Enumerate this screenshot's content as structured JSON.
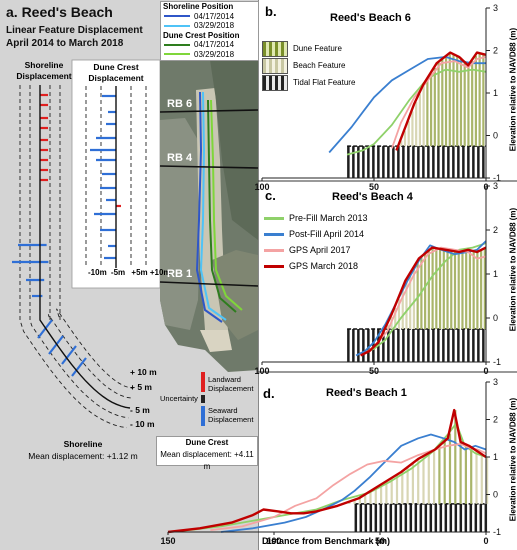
{
  "panel_a": {
    "label": "a. Reed's Beach",
    "subtitle_line1": "Linear Feature Displacement",
    "subtitle_line2": "April 2014 to March 2018",
    "shoreline_header_1": "Shoreline",
    "shoreline_header_2": "Displacement",
    "dune_header_1": "Dune Crest",
    "dune_header_2": "Displacement",
    "inset_axis": [
      "-10m",
      "-5m",
      "+5m",
      "+10m"
    ],
    "scale_labels": [
      "+ 10 m",
      "+ 5 m",
      "- 5 m",
      "- 10 m"
    ],
    "legend_landward": "Landward Displacement",
    "legend_uncertainty": "Uncertainty",
    "legend_seaward": "Seaward Displacement",
    "shoreline_footer_title": "Shoreline",
    "shoreline_footer_value": "Mean displacement: +1.12 m",
    "dune_footer_title": "Dune Crest",
    "dune_footer_value": "Mean displacement: +4.11 m",
    "map_legend": {
      "shoreline_title": "Shoreline Position",
      "shoreline_items": [
        {
          "label": "04/17/2014",
          "color": "#2f56c8"
        },
        {
          "label": "03/29/2018",
          "color": "#4fc3f7"
        }
      ],
      "dune_title": "Dune Crest Position",
      "dune_items": [
        {
          "label": "04/17/2014",
          "color": "#2e7d1e"
        },
        {
          "label": "03/29/2018",
          "color": "#7fd63a"
        }
      ]
    },
    "transects": [
      "RB 6",
      "RB 4",
      "RB 1"
    ],
    "colors": {
      "landward": "#e02020",
      "seaward": "#2f6fd6",
      "uncertainty": "#222222"
    }
  },
  "panel_b": {
    "label": "b.",
    "title": "Reed's Beach 6",
    "legend": [
      "Dune Feature",
      "Beach Feature",
      "Tidal Flat Feature"
    ]
  },
  "panel_c": {
    "label": "c.",
    "title": "Reed's Beach 4",
    "legend": [
      {
        "label": "Pre-Fill March 2013",
        "color": "#8fd16a"
      },
      {
        "label": "Post-Fill April 2014",
        "color": "#3a7fd0"
      },
      {
        "label": "GPS April 2017",
        "color": "#f4a3a3"
      },
      {
        "label": "GPS March 2018",
        "color": "#c00000"
      }
    ]
  },
  "panel_d": {
    "label": "d.",
    "title": "Reed's Beach 1",
    "xlabel": "Distance from Benchmark (m)"
  },
  "ylabel": "Elevation relative to NAVD88 (m)",
  "chart_data": [
    {
      "type": "line",
      "title": "Reed's Beach 6",
      "xlim": [
        100,
        0
      ],
      "ylim": [
        -1,
        3
      ],
      "x_ticks": [
        "100",
        "50",
        "0"
      ],
      "y_ticks": [
        "3",
        "2",
        "1",
        "0",
        "-1"
      ],
      "series": [
        {
          "name": "Pre-Fill March 2013",
          "x": [
            62,
            55,
            50,
            42,
            34,
            26,
            18,
            12,
            6,
            0
          ],
          "y": [
            -0.45,
            -0.35,
            -0.2,
            0.25,
            0.85,
            1.35,
            1.55,
            1.5,
            1.55,
            1.5
          ]
        },
        {
          "name": "Post-Fill April 2014",
          "x": [
            70,
            60,
            55,
            50,
            42,
            34,
            26,
            18,
            12,
            6,
            0
          ],
          "y": [
            -0.4,
            0.2,
            0.55,
            0.9,
            1.3,
            1.55,
            1.8,
            1.85,
            1.75,
            1.7,
            1.7
          ]
        },
        {
          "name": "GPS April 2017",
          "x": [
            42,
            38,
            32,
            26,
            20,
            14,
            8,
            4,
            0
          ],
          "y": [
            -0.3,
            0.3,
            0.9,
            1.3,
            1.7,
            1.75,
            1.6,
            1.8,
            1.85
          ]
        },
        {
          "name": "GPS March 2018",
          "x": [
            40,
            36,
            32,
            28,
            22,
            16,
            12,
            8,
            4,
            0
          ],
          "y": [
            -0.35,
            0.2,
            0.75,
            1.2,
            1.7,
            1.95,
            1.85,
            1.65,
            1.95,
            1.9
          ]
        }
      ]
    },
    {
      "type": "line",
      "title": "Reed's Beach 4",
      "xlim": [
        100,
        0
      ],
      "ylim": [
        -1,
        3
      ],
      "x_ticks": [
        "100",
        "50",
        "0"
      ],
      "y_ticks": [
        "3",
        "2",
        "1",
        "0",
        "-1"
      ],
      "series": [
        {
          "name": "Pre-Fill March 2013",
          "x": [
            55,
            50,
            45,
            38,
            30,
            24,
            18,
            12,
            6,
            0
          ],
          "y": [
            -0.8,
            -0.7,
            -0.5,
            0.0,
            0.5,
            0.95,
            1.3,
            1.55,
            1.6,
            1.7
          ]
        },
        {
          "name": "Post-Fill April 2014",
          "x": [
            58,
            54,
            50,
            45,
            40,
            35,
            30,
            25,
            20,
            14,
            8,
            4,
            0
          ],
          "y": [
            -0.85,
            -0.75,
            -0.55,
            -0.15,
            0.35,
            0.85,
            1.3,
            1.65,
            1.55,
            1.45,
            1.5,
            1.55,
            1.75
          ]
        },
        {
          "name": "GPS April 2017",
          "x": [
            54,
            50,
            44,
            38,
            32,
            26,
            20,
            14,
            8,
            4,
            0
          ],
          "y": [
            -0.8,
            -0.65,
            -0.3,
            0.4,
            1.0,
            1.45,
            1.6,
            1.55,
            1.5,
            1.35,
            1.4
          ]
        },
        {
          "name": "GPS March 2018",
          "x": [
            56,
            52,
            48,
            42,
            36,
            30,
            24,
            18,
            12,
            8,
            4,
            0
          ],
          "y": [
            -0.85,
            -0.75,
            -0.55,
            0.1,
            0.85,
            1.35,
            1.6,
            1.55,
            1.5,
            1.55,
            1.5,
            1.6
          ]
        }
      ]
    },
    {
      "type": "line",
      "title": "Reed's Beach 1",
      "xlabel": "Distance from Benchmark (m)",
      "xlim": [
        150,
        0
      ],
      "ylim": [
        -1,
        3
      ],
      "x_ticks": [
        "150",
        "100",
        "50",
        "0"
      ],
      "y_ticks": [
        "3",
        "2",
        "1",
        "0",
        "-1"
      ],
      "series": [
        {
          "name": "Pre-Fill March 2013",
          "x": [
            150,
            140,
            125,
            110,
            95,
            80,
            68,
            55,
            45,
            35,
            25,
            18,
            14,
            10,
            5,
            0
          ],
          "y": [
            -1.0,
            -0.95,
            -0.85,
            -0.7,
            -0.55,
            -0.4,
            -0.15,
            0.05,
            0.35,
            0.7,
            1.15,
            1.6,
            1.9,
            1.3,
            1.1,
            1.0
          ]
        },
        {
          "name": "Post-Fill April 2014",
          "x": [
            125,
            110,
            95,
            85,
            75,
            68,
            62,
            55,
            48,
            40,
            32,
            26,
            20,
            15,
            10,
            5,
            0
          ],
          "y": [
            -1.0,
            -0.9,
            -0.75,
            -0.6,
            -0.35,
            -0.15,
            0.1,
            0.45,
            0.85,
            1.3,
            1.5,
            1.6,
            1.5,
            1.4,
            1.2,
            1.3,
            1.2
          ]
        },
        {
          "name": "GPS April 2017",
          "x": [
            130,
            115,
            100,
            90,
            80,
            72,
            64,
            56,
            48,
            40,
            32,
            24,
            18,
            12,
            8,
            4,
            0
          ],
          "y": [
            -0.95,
            -0.85,
            -0.6,
            -0.3,
            -0.1,
            0.25,
            0.55,
            0.8,
            0.9,
            0.85,
            1.05,
            1.2,
            1.3,
            1.35,
            1.25,
            1.2,
            1.1
          ]
        },
        {
          "name": "GPS March 2018",
          "x": [
            150,
            135,
            120,
            110,
            105,
            98,
            92,
            86,
            80,
            70,
            60,
            50,
            40,
            32,
            24,
            18,
            15,
            12,
            8,
            4,
            0
          ],
          "y": [
            -1.0,
            -0.9,
            -0.75,
            -0.55,
            -0.4,
            -0.45,
            -0.5,
            -0.5,
            -0.45,
            -0.3,
            -0.1,
            0.25,
            0.6,
            0.95,
            1.2,
            1.5,
            2.25,
            1.4,
            1.3,
            1.15,
            1.0
          ]
        }
      ]
    }
  ]
}
